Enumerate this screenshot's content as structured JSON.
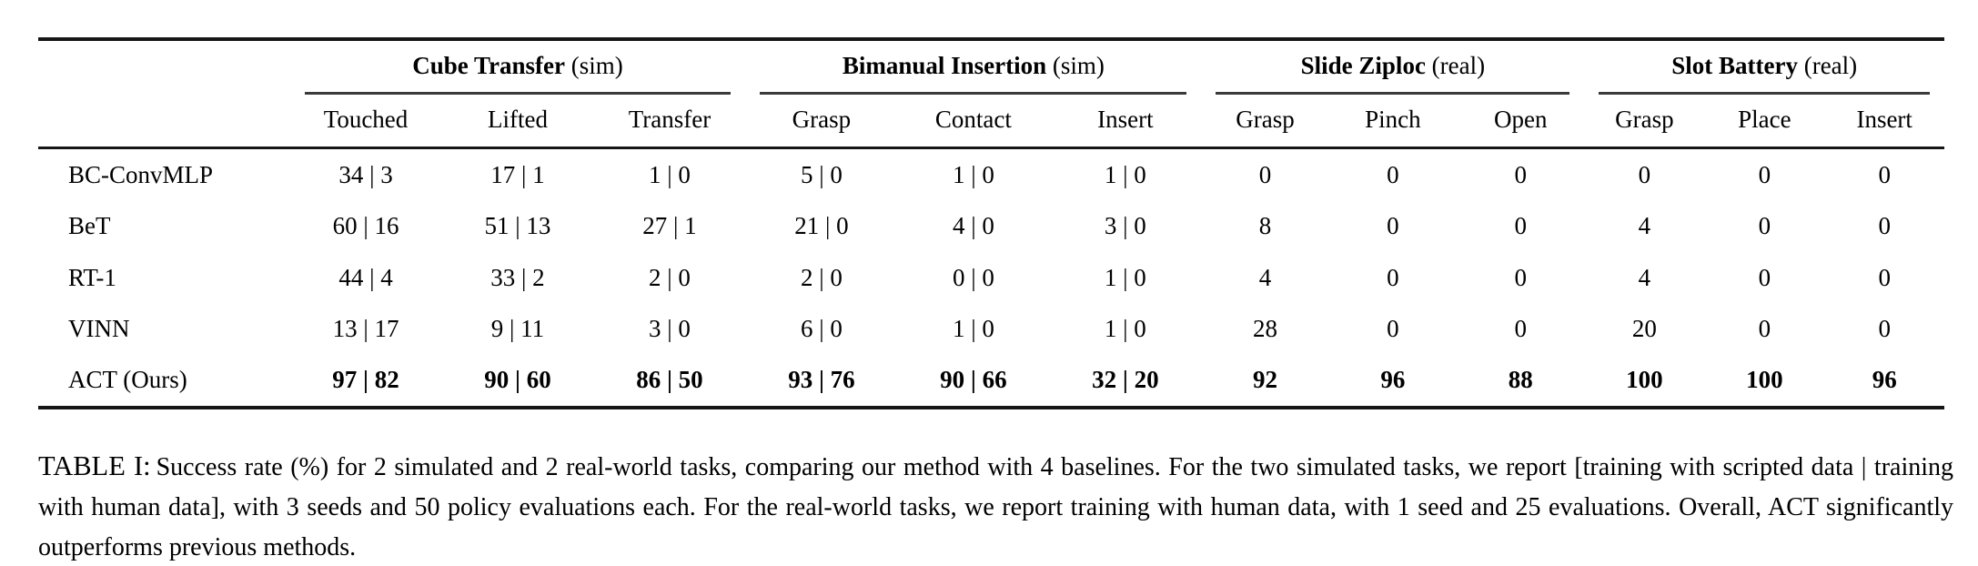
{
  "table": {
    "groups": [
      {
        "name": "Cube Transfer",
        "mode": "(sim)",
        "columns": [
          "Touched",
          "Lifted",
          "Transfer"
        ]
      },
      {
        "name": "Bimanual Insertion",
        "mode": "(sim)",
        "columns": [
          "Grasp",
          "Contact",
          "Insert"
        ]
      },
      {
        "name": "Slide Ziploc",
        "mode": "(real)",
        "columns": [
          "Grasp",
          "Pinch",
          "Open"
        ]
      },
      {
        "name": "Slot Battery",
        "mode": "(real)",
        "columns": [
          "Grasp",
          "Place",
          "Insert"
        ]
      }
    ],
    "rows": [
      {
        "label": "BC-ConvMLP",
        "bold": false,
        "values": [
          "34 | 3",
          "17 | 1",
          "1 | 0",
          "5 | 0",
          "1 | 0",
          "1 | 0",
          "0",
          "0",
          "0",
          "0",
          "0",
          "0"
        ]
      },
      {
        "label": "BeT",
        "bold": false,
        "values": [
          "60 | 16",
          "51 | 13",
          "27 | 1",
          "21 | 0",
          "4 | 0",
          "3 | 0",
          "8",
          "0",
          "0",
          "4",
          "0",
          "0"
        ]
      },
      {
        "label": "RT-1",
        "bold": false,
        "values": [
          "44 | 4",
          "33 | 2",
          "2 | 0",
          "2 | 0",
          "0 | 0",
          "1 | 0",
          "4",
          "0",
          "0",
          "4",
          "0",
          "0"
        ]
      },
      {
        "label": "VINN",
        "bold": false,
        "values": [
          "13 | 17",
          "9 | 11",
          "3 | 0",
          "6 | 0",
          "1 | 0",
          "1 | 0",
          "28",
          "0",
          "0",
          "20",
          "0",
          "0"
        ]
      },
      {
        "label": "ACT (Ours)",
        "bold": true,
        "values": [
          "97 | 82",
          "90 | 60",
          "86 | 50",
          "93 | 76",
          "90 | 66",
          "32 | 20",
          "92",
          "96",
          "88",
          "100",
          "100",
          "96"
        ]
      }
    ]
  },
  "caption": {
    "label": "TABLE I:",
    "text": "Success rate (%) for 2 simulated and 2 real-world tasks, comparing our method with 4 baselines. For the two simulated tasks, we report [training with scripted data | training with human data], with 3 seeds and 50 policy evaluations each. For the real-world tasks, we report training with human data, with 1 seed and 25 evaluations. Overall, ACT significantly outperforms previous methods."
  }
}
